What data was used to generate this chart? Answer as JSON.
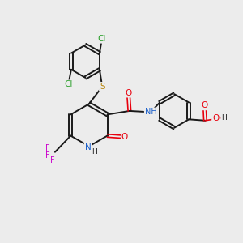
{
  "bg_color": "#ececec",
  "bond_color": "#1a1a1a",
  "bond_width": 1.4,
  "figsize": [
    3.0,
    3.0
  ],
  "dpi": 100,
  "colors": {
    "N": "#1a5ec9",
    "O": "#e8000d",
    "S": "#b8860b",
    "Cl": "#2ca02c",
    "F": "#cc00cc",
    "H": "#1a1a1a",
    "bond": "#1a1a1a"
  }
}
